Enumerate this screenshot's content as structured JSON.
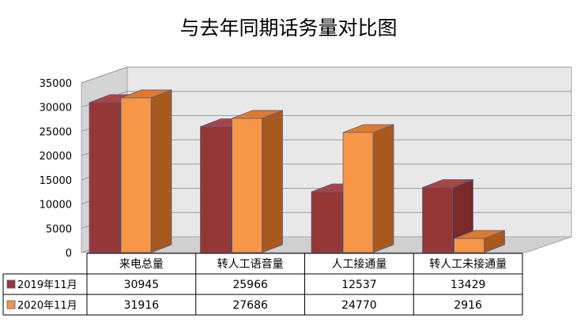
{
  "chart_data": {
    "type": "bar",
    "title": "与去年同期话务量对比图",
    "categories": [
      "来电总量",
      "转人工语音量",
      "人工接通量",
      "转人工未接通量"
    ],
    "series": [
      {
        "name": "2019年11月",
        "values": [
          30945,
          25966,
          12537,
          13429
        ],
        "color": "#953735"
      },
      {
        "name": "2020年11月",
        "values": [
          31916,
          27686,
          24770,
          2916
        ],
        "color": "#F79646"
      }
    ],
    "yticks": [
      0,
      5000,
      10000,
      15000,
      20000,
      25000,
      30000,
      35000
    ],
    "ylim": [
      0,
      35000
    ],
    "grid": true,
    "legend": "data-table"
  }
}
